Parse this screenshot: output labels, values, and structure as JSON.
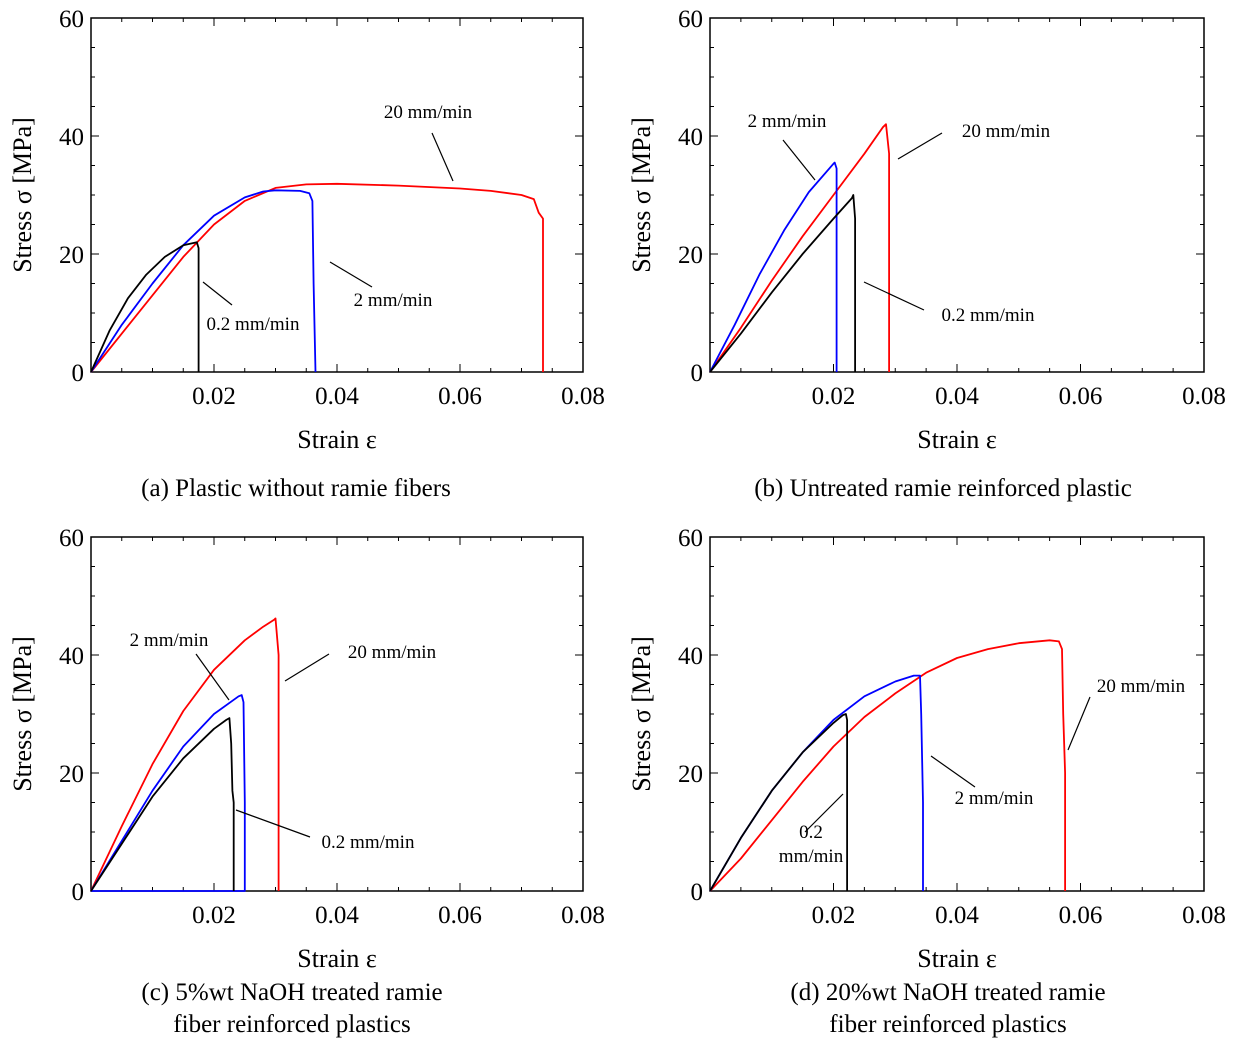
{
  "chart_data": [
    {
      "type": "line",
      "caption": [
        "(a) Plastic without ramie fibers"
      ],
      "xlabel": "Strain ε",
      "ylabel": "Stress σ [MPa]",
      "xlim": [
        0,
        0.08
      ],
      "ylim": [
        0,
        60
      ],
      "xticks": [
        "0.02",
        "0.04",
        "0.06",
        "0.08"
      ],
      "yticks": [
        "0",
        "20",
        "40",
        "60"
      ],
      "annotations": [
        {
          "lines": [
            "20 mm/min"
          ],
          "series": 0
        },
        {
          "lines": [
            "2 mm/min"
          ],
          "series": 1
        },
        {
          "lines": [
            "0.2 mm/min"
          ],
          "series": 2
        }
      ],
      "series": [
        {
          "name": "20 mm/min",
          "color": "#ff0000",
          "x": [
            0,
            0.005,
            0.01,
            0.015,
            0.02,
            0.025,
            0.03,
            0.035,
            0.04,
            0.05,
            0.06,
            0.065,
            0.07,
            0.072,
            0.0728,
            0.0735,
            0.0735
          ],
          "y": [
            0,
            6.5,
            13,
            19.5,
            25,
            29,
            31.2,
            31.8,
            31.9,
            31.6,
            31.1,
            30.7,
            30,
            29.3,
            27,
            26,
            0
          ]
        },
        {
          "name": "2 mm/min",
          "color": "#0000ff",
          "x": [
            0,
            0.005,
            0.01,
            0.015,
            0.02,
            0.025,
            0.028,
            0.03,
            0.034,
            0.0355,
            0.036,
            0.0362,
            0.0365
          ],
          "y": [
            0,
            8,
            15,
            21.5,
            26.5,
            29.6,
            30.6,
            30.8,
            30.7,
            30.3,
            29,
            15,
            0
          ]
        },
        {
          "name": "0.2 mm/min",
          "color": "#000000",
          "x": [
            0,
            0.003,
            0.006,
            0.009,
            0.012,
            0.015,
            0.0172,
            0.0175,
            0.0175
          ],
          "y": [
            0,
            7,
            12.5,
            16.5,
            19.5,
            21.5,
            22,
            21,
            0
          ]
        }
      ]
    },
    {
      "type": "line",
      "caption": [
        "(b) Untreated ramie reinforced plastic"
      ],
      "xlabel": "Strain ε",
      "ylabel": "Stress σ [MPa]",
      "xlim": [
        0,
        0.08
      ],
      "ylim": [
        0,
        60
      ],
      "xticks": [
        "0.02",
        "0.04",
        "0.06",
        "0.08"
      ],
      "yticks": [
        "0",
        "20",
        "40",
        "60"
      ],
      "annotations": [
        {
          "lines": [
            "2 mm/min"
          ],
          "series": 1
        },
        {
          "lines": [
            "20 mm/min"
          ],
          "series": 0
        },
        {
          "lines": [
            "0.2 mm/min"
          ],
          "series": 2
        }
      ],
      "series": [
        {
          "name": "20 mm/min",
          "color": "#ff0000",
          "x": [
            0,
            0.005,
            0.01,
            0.015,
            0.02,
            0.025,
            0.028,
            0.0285,
            0.029,
            0.029
          ],
          "y": [
            0,
            7.5,
            15.5,
            23,
            30,
            37,
            41.5,
            42,
            37,
            0
          ]
        },
        {
          "name": "2 mm/min",
          "color": "#0000ff",
          "x": [
            0,
            0.004,
            0.008,
            0.012,
            0.016,
            0.02,
            0.0202,
            0.0205,
            0.0205
          ],
          "y": [
            0,
            8,
            16.5,
            24,
            30.5,
            35.3,
            35.5,
            34.5,
            0
          ]
        },
        {
          "name": "0.2 mm/min",
          "color": "#000000",
          "x": [
            0,
            0.005,
            0.01,
            0.015,
            0.02,
            0.023,
            0.0232,
            0.0235,
            0.0235
          ],
          "y": [
            0,
            6.5,
            13.5,
            20,
            26,
            29.5,
            30,
            26,
            0
          ]
        }
      ]
    },
    {
      "type": "line",
      "caption": [
        "(c) 5%wt NaOH treated ramie",
        "fiber reinforced plastics"
      ],
      "xlabel": "Strain ε",
      "ylabel": "Stress σ [MPa]",
      "xlim": [
        0,
        0.08
      ],
      "ylim": [
        0,
        60
      ],
      "xticks": [
        "0.02",
        "0.04",
        "0.06",
        "0.08"
      ],
      "yticks": [
        "0",
        "20",
        "40",
        "60"
      ],
      "annotations": [
        {
          "lines": [
            "2 mm/min"
          ],
          "series": 1
        },
        {
          "lines": [
            "20 mm/min"
          ],
          "series": 0
        },
        {
          "lines": [
            "0.2 mm/min"
          ],
          "series": 2
        }
      ],
      "series": [
        {
          "name": "20 mm/min",
          "color": "#ff0000",
          "x": [
            0,
            0.005,
            0.01,
            0.015,
            0.02,
            0.025,
            0.028,
            0.0298,
            0.03,
            0.0305,
            0.0305
          ],
          "y": [
            0,
            11,
            21.5,
            30.5,
            37.5,
            42.5,
            44.8,
            46,
            46.2,
            40,
            0
          ]
        },
        {
          "name": "2 mm/min",
          "color": "#0000ff",
          "x": [
            0,
            0.005,
            0.01,
            0.015,
            0.02,
            0.024,
            0.0245,
            0.0248,
            0.025,
            0.025,
            0
          ],
          "y": [
            0,
            8.5,
            17,
            24.5,
            30,
            33,
            33.2,
            32,
            15,
            0,
            0
          ]
        },
        {
          "name": "0.2 mm/min",
          "color": "#000000",
          "x": [
            0,
            0.005,
            0.01,
            0.015,
            0.02,
            0.022,
            0.0225,
            0.0228,
            0.023,
            0.0232,
            0.0232
          ],
          "y": [
            0,
            8,
            16,
            22.5,
            27.5,
            29,
            29.3,
            25,
            17,
            15,
            0
          ]
        }
      ]
    },
    {
      "type": "line",
      "caption": [
        "(d) 20%wt NaOH treated ramie",
        "fiber reinforced plastics"
      ],
      "xlabel": "Strain ε",
      "ylabel": "Stress σ [MPa]",
      "xlim": [
        0,
        0.08
      ],
      "ylim": [
        0,
        60
      ],
      "xticks": [
        "0.02",
        "0.04",
        "0.06",
        "0.08"
      ],
      "yticks": [
        "0",
        "20",
        "40",
        "60"
      ],
      "annotations": [
        {
          "lines": [
            "20 mm/min"
          ],
          "series": 0
        },
        {
          "lines": [
            "2 mm/min"
          ],
          "series": 1
        },
        {
          "lines": [
            "0.2",
            "mm/min"
          ],
          "series": 2
        }
      ],
      "series": [
        {
          "name": "20 mm/min",
          "color": "#ff0000",
          "x": [
            0,
            0.005,
            0.01,
            0.015,
            0.02,
            0.025,
            0.03,
            0.035,
            0.04,
            0.045,
            0.05,
            0.055,
            0.0565,
            0.057,
            0.0572,
            0.0575,
            0.0575
          ],
          "y": [
            0,
            5.5,
            12,
            18.5,
            24.5,
            29.5,
            33.5,
            37,
            39.5,
            41,
            42,
            42.5,
            42.3,
            41,
            30,
            20,
            0
          ]
        },
        {
          "name": "2 mm/min",
          "color": "#0000ff",
          "x": [
            0,
            0.005,
            0.01,
            0.015,
            0.02,
            0.025,
            0.03,
            0.033,
            0.034,
            0.0342,
            0.0345,
            0.0345
          ],
          "y": [
            0,
            9,
            17,
            23.5,
            29,
            33,
            35.5,
            36.5,
            36.5,
            30,
            15,
            0
          ]
        },
        {
          "name": "0.2 mm/min",
          "color": "#000000",
          "x": [
            0,
            0.005,
            0.01,
            0.015,
            0.02,
            0.0215,
            0.022,
            0.0222,
            0.0222
          ],
          "y": [
            0,
            9,
            17,
            23.5,
            28.5,
            29.8,
            30,
            29,
            0
          ]
        }
      ]
    }
  ]
}
